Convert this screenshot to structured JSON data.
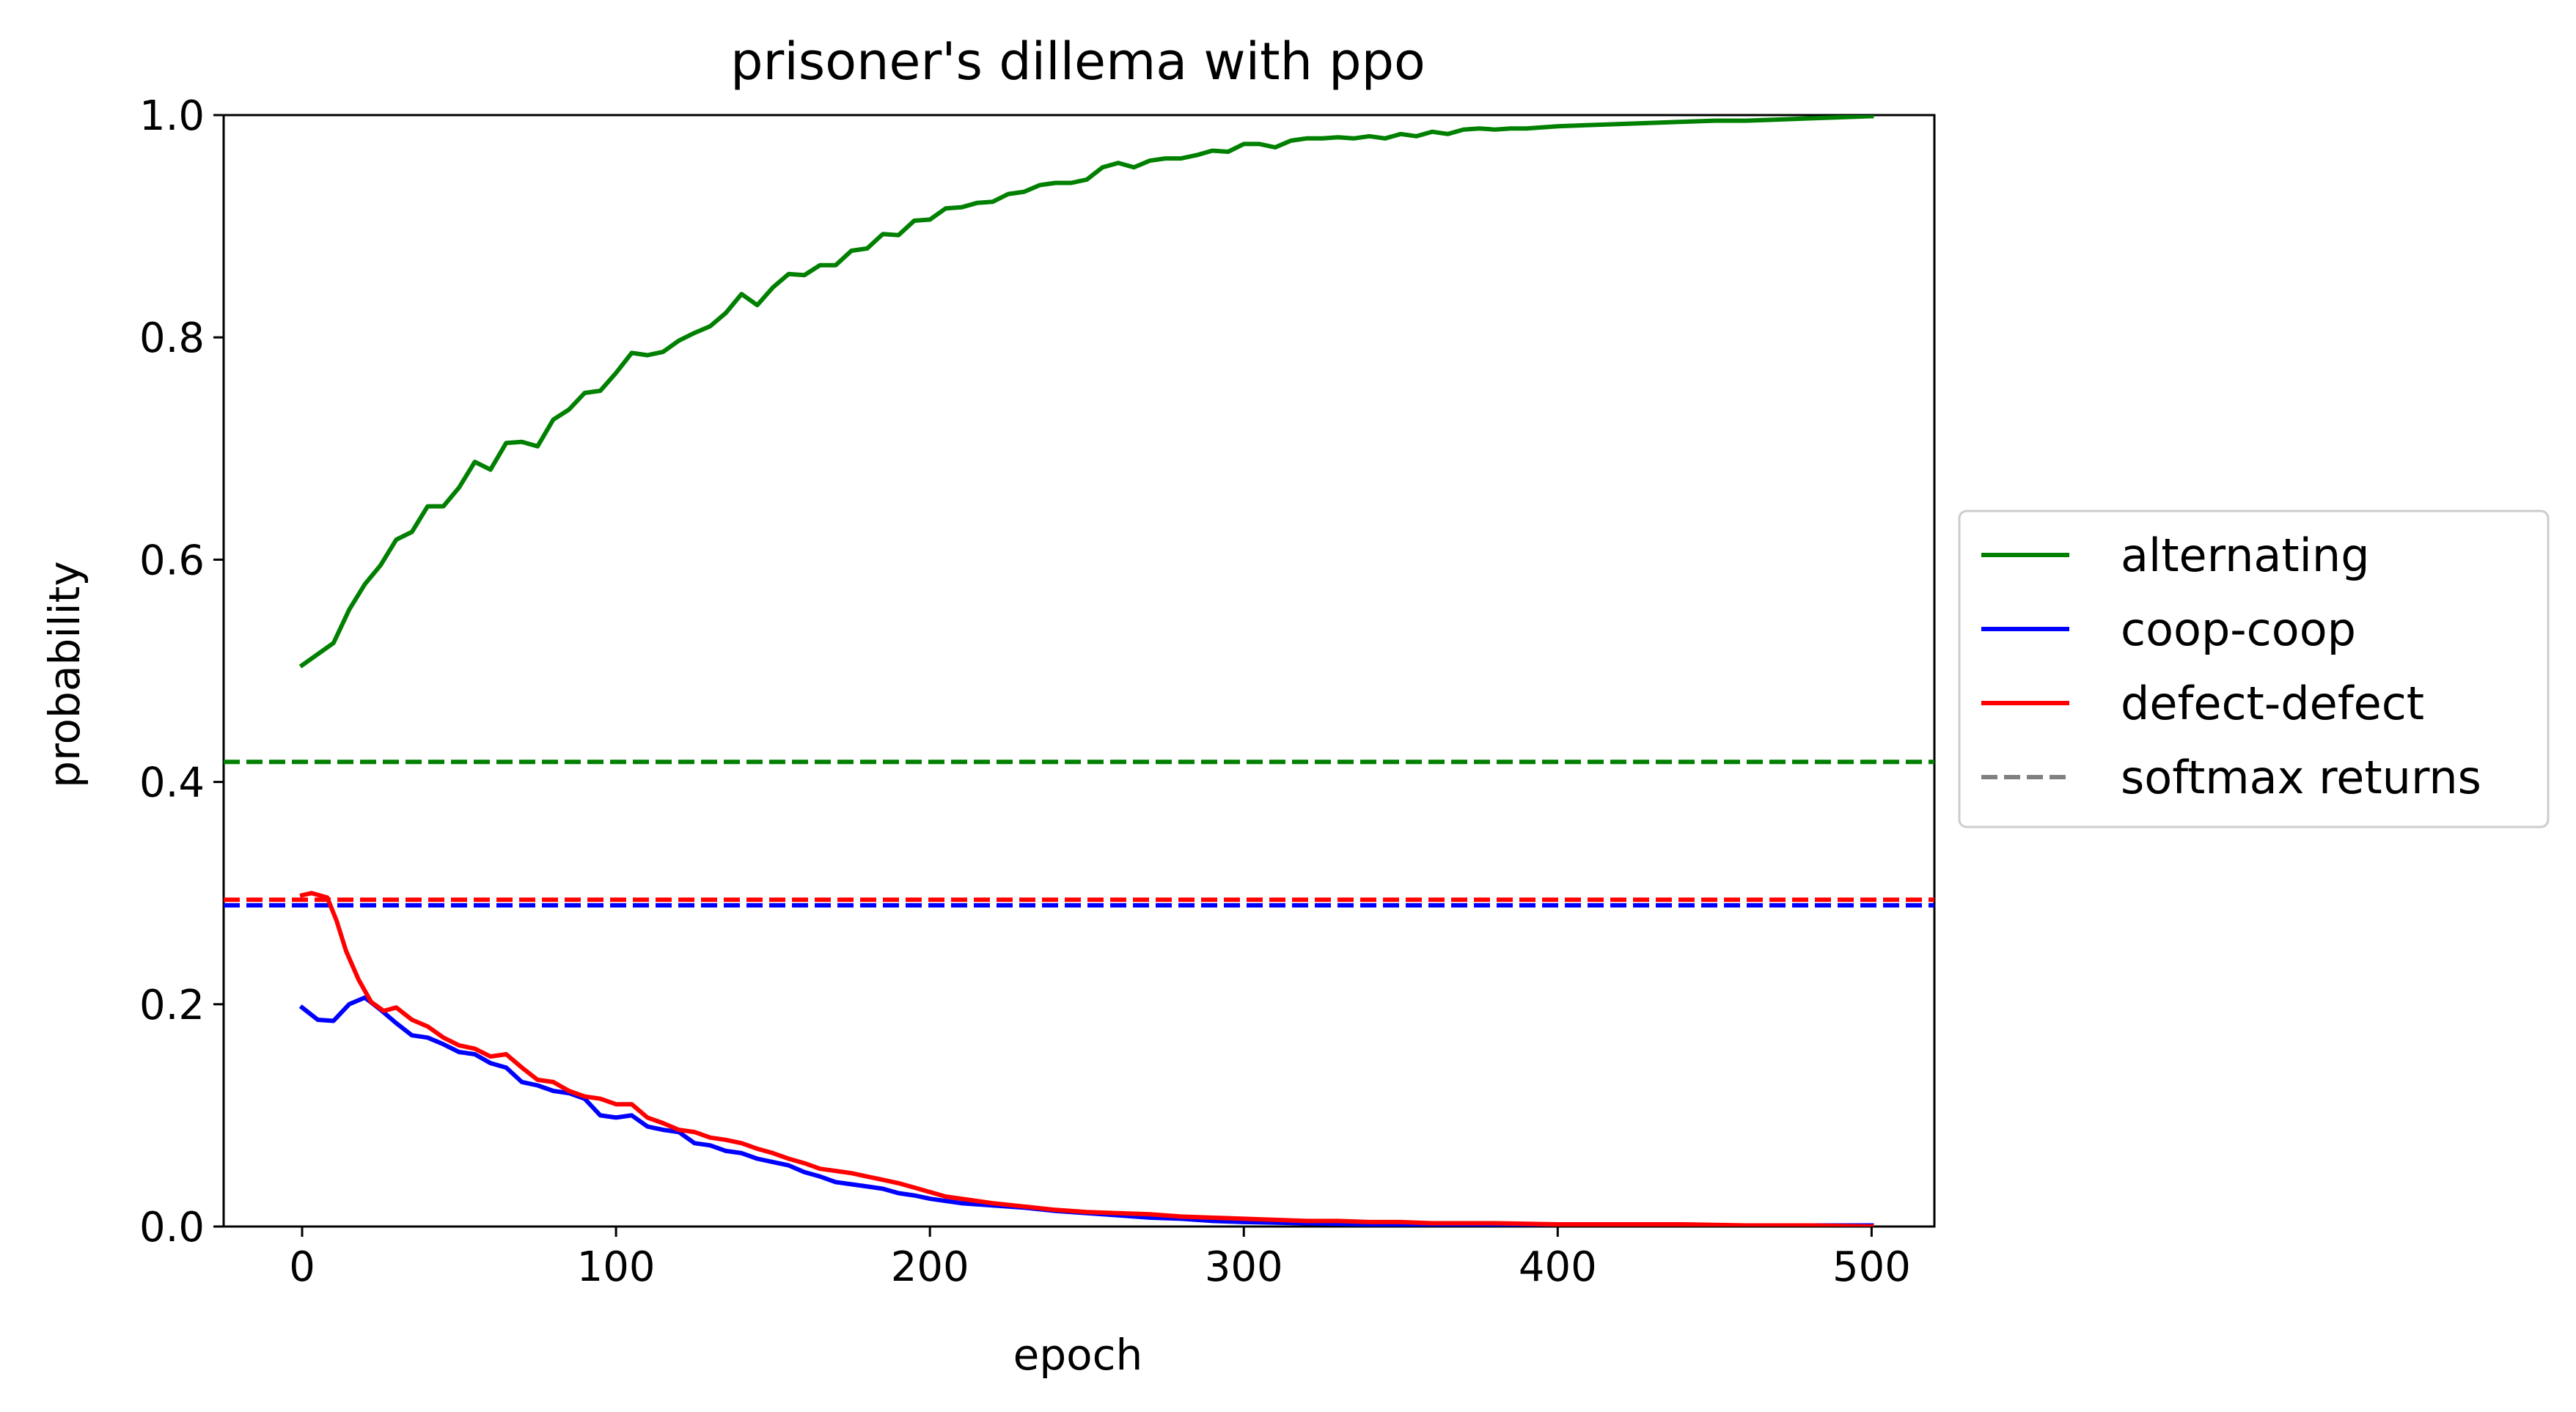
{
  "chart_data": {
    "type": "line",
    "title": "prisoner's dillema with ppo",
    "xlabel": "epoch",
    "ylabel": "probability",
    "xlim": [
      -25,
      520
    ],
    "ylim": [
      0.0,
      1.0
    ],
    "xticks": [
      0,
      100,
      200,
      300,
      400,
      500
    ],
    "yticks": [
      0.0,
      0.2,
      0.4,
      0.6,
      0.8,
      1.0
    ],
    "xtick_labels": [
      "0",
      "100",
      "200",
      "300",
      "400",
      "500"
    ],
    "ytick_labels": [
      "0.0",
      "0.2",
      "0.4",
      "0.6",
      "0.8",
      "1.0"
    ],
    "grid": false,
    "legend_position": "right, outside plot, vertically centered",
    "series": [
      {
        "name": "alternating",
        "color": "#008000",
        "style": "solid",
        "points": [
          [
            0,
            0.505
          ],
          [
            10,
            0.525
          ],
          [
            15,
            0.555
          ],
          [
            20,
            0.578
          ],
          [
            25,
            0.595
          ],
          [
            30,
            0.618
          ],
          [
            35,
            0.625
          ],
          [
            40,
            0.648
          ],
          [
            45,
            0.648
          ],
          [
            50,
            0.665
          ],
          [
            55,
            0.688
          ],
          [
            60,
            0.681
          ],
          [
            65,
            0.705
          ],
          [
            70,
            0.706
          ],
          [
            75,
            0.702
          ],
          [
            80,
            0.726
          ],
          [
            85,
            0.735
          ],
          [
            90,
            0.75
          ],
          [
            95,
            0.752
          ],
          [
            100,
            0.768
          ],
          [
            105,
            0.786
          ],
          [
            110,
            0.784
          ],
          [
            115,
            0.787
          ],
          [
            120,
            0.797
          ],
          [
            125,
            0.804
          ],
          [
            130,
            0.81
          ],
          [
            135,
            0.822
          ],
          [
            140,
            0.839
          ],
          [
            145,
            0.829
          ],
          [
            150,
            0.845
          ],
          [
            155,
            0.857
          ],
          [
            160,
            0.856
          ],
          [
            165,
            0.865
          ],
          [
            170,
            0.865
          ],
          [
            175,
            0.878
          ],
          [
            180,
            0.88
          ],
          [
            185,
            0.893
          ],
          [
            190,
            0.892
          ],
          [
            195,
            0.905
          ],
          [
            200,
            0.906
          ],
          [
            205,
            0.916
          ],
          [
            210,
            0.917
          ],
          [
            215,
            0.921
          ],
          [
            220,
            0.922
          ],
          [
            225,
            0.929
          ],
          [
            230,
            0.931
          ],
          [
            235,
            0.937
          ],
          [
            240,
            0.939
          ],
          [
            245,
            0.939
          ],
          [
            250,
            0.942
          ],
          [
            255,
            0.953
          ],
          [
            260,
            0.957
          ],
          [
            265,
            0.953
          ],
          [
            270,
            0.959
          ],
          [
            275,
            0.961
          ],
          [
            280,
            0.961
          ],
          [
            285,
            0.964
          ],
          [
            290,
            0.968
          ],
          [
            295,
            0.967
          ],
          [
            300,
            0.974
          ],
          [
            305,
            0.974
          ],
          [
            310,
            0.971
          ],
          [
            315,
            0.977
          ],
          [
            320,
            0.979
          ],
          [
            325,
            0.979
          ],
          [
            330,
            0.98
          ],
          [
            335,
            0.979
          ],
          [
            340,
            0.981
          ],
          [
            345,
            0.979
          ],
          [
            350,
            0.983
          ],
          [
            355,
            0.981
          ],
          [
            360,
            0.985
          ],
          [
            365,
            0.983
          ],
          [
            370,
            0.987
          ],
          [
            375,
            0.988
          ],
          [
            380,
            0.987
          ],
          [
            385,
            0.988
          ],
          [
            390,
            0.988
          ],
          [
            395,
            0.989
          ],
          [
            400,
            0.99
          ],
          [
            410,
            0.991
          ],
          [
            420,
            0.992
          ],
          [
            430,
            0.993
          ],
          [
            440,
            0.994
          ],
          [
            450,
            0.995
          ],
          [
            460,
            0.995
          ],
          [
            470,
            0.996
          ],
          [
            480,
            0.997
          ],
          [
            490,
            0.998
          ],
          [
            500,
            0.999
          ]
        ]
      },
      {
        "name": "coop-coop",
        "color": "#0000ff",
        "style": "solid",
        "points": [
          [
            0,
            0.197
          ],
          [
            5,
            0.186
          ],
          [
            10,
            0.185
          ],
          [
            15,
            0.2
          ],
          [
            20,
            0.206
          ],
          [
            25,
            0.195
          ],
          [
            30,
            0.183
          ],
          [
            35,
            0.172
          ],
          [
            40,
            0.17
          ],
          [
            45,
            0.164
          ],
          [
            50,
            0.157
          ],
          [
            55,
            0.155
          ],
          [
            60,
            0.147
          ],
          [
            65,
            0.143
          ],
          [
            70,
            0.13
          ],
          [
            75,
            0.127
          ],
          [
            80,
            0.122
          ],
          [
            85,
            0.12
          ],
          [
            90,
            0.115
          ],
          [
            95,
            0.1
          ],
          [
            100,
            0.098
          ],
          [
            105,
            0.1
          ],
          [
            110,
            0.09
          ],
          [
            115,
            0.087
          ],
          [
            120,
            0.085
          ],
          [
            125,
            0.075
          ],
          [
            130,
            0.073
          ],
          [
            135,
            0.068
          ],
          [
            140,
            0.066
          ],
          [
            145,
            0.061
          ],
          [
            150,
            0.058
          ],
          [
            155,
            0.055
          ],
          [
            160,
            0.049
          ],
          [
            165,
            0.045
          ],
          [
            170,
            0.04
          ],
          [
            175,
            0.038
          ],
          [
            180,
            0.036
          ],
          [
            185,
            0.034
          ],
          [
            190,
            0.03
          ],
          [
            195,
            0.028
          ],
          [
            200,
            0.025
          ],
          [
            210,
            0.021
          ],
          [
            220,
            0.019
          ],
          [
            230,
            0.017
          ],
          [
            240,
            0.014
          ],
          [
            250,
            0.012
          ],
          [
            260,
            0.01
          ],
          [
            270,
            0.008
          ],
          [
            280,
            0.007
          ],
          [
            290,
            0.005
          ],
          [
            300,
            0.004
          ],
          [
            320,
            0.003
          ],
          [
            340,
            0.002
          ],
          [
            360,
            0.002
          ],
          [
            380,
            0.002
          ],
          [
            400,
            0.001
          ],
          [
            420,
            0.001
          ],
          [
            450,
            0.001
          ],
          [
            480,
            0.001
          ],
          [
            500,
            0.001
          ]
        ]
      },
      {
        "name": "defect-defect",
        "color": "#ff0000",
        "style": "solid",
        "points": [
          [
            0,
            0.298
          ],
          [
            3,
            0.3
          ],
          [
            8,
            0.296
          ],
          [
            11,
            0.275
          ],
          [
            14,
            0.248
          ],
          [
            18,
            0.222
          ],
          [
            22,
            0.202
          ],
          [
            26,
            0.194
          ],
          [
            30,
            0.197
          ],
          [
            35,
            0.186
          ],
          [
            40,
            0.18
          ],
          [
            45,
            0.17
          ],
          [
            50,
            0.163
          ],
          [
            55,
            0.16
          ],
          [
            60,
            0.153
          ],
          [
            65,
            0.155
          ],
          [
            70,
            0.143
          ],
          [
            75,
            0.132
          ],
          [
            80,
            0.13
          ],
          [
            85,
            0.122
          ],
          [
            90,
            0.117
          ],
          [
            95,
            0.115
          ],
          [
            100,
            0.11
          ],
          [
            105,
            0.11
          ],
          [
            110,
            0.098
          ],
          [
            115,
            0.093
          ],
          [
            120,
            0.087
          ],
          [
            125,
            0.085
          ],
          [
            130,
            0.08
          ],
          [
            135,
            0.078
          ],
          [
            140,
            0.075
          ],
          [
            145,
            0.07
          ],
          [
            150,
            0.066
          ],
          [
            155,
            0.061
          ],
          [
            160,
            0.057
          ],
          [
            165,
            0.052
          ],
          [
            170,
            0.05
          ],
          [
            175,
            0.048
          ],
          [
            180,
            0.045
          ],
          [
            185,
            0.042
          ],
          [
            190,
            0.039
          ],
          [
            195,
            0.035
          ],
          [
            200,
            0.031
          ],
          [
            205,
            0.027
          ],
          [
            210,
            0.025
          ],
          [
            220,
            0.021
          ],
          [
            230,
            0.018
          ],
          [
            240,
            0.015
          ],
          [
            250,
            0.013
          ],
          [
            260,
            0.012
          ],
          [
            270,
            0.011
          ],
          [
            280,
            0.009
          ],
          [
            290,
            0.008
          ],
          [
            300,
            0.007
          ],
          [
            310,
            0.006
          ],
          [
            320,
            0.005
          ],
          [
            330,
            0.005
          ],
          [
            340,
            0.004
          ],
          [
            350,
            0.004
          ],
          [
            360,
            0.003
          ],
          [
            380,
            0.003
          ],
          [
            400,
            0.002
          ],
          [
            420,
            0.002
          ],
          [
            440,
            0.002
          ],
          [
            460,
            0.001
          ],
          [
            480,
            0.001
          ],
          [
            500,
            0.0
          ]
        ]
      }
    ],
    "reference_lines": [
      {
        "label": "softmax returns",
        "value": 0.418,
        "color": "#008000",
        "style": "dashed"
      },
      {
        "label": "softmax returns",
        "value": 0.294,
        "color": "#ff0000",
        "style": "dashed"
      },
      {
        "label": "softmax returns",
        "value": 0.289,
        "color": "#0000ff",
        "style": "dashed"
      }
    ],
    "legend": [
      {
        "label": "alternating",
        "color": "#008000",
        "style": "solid"
      },
      {
        "label": "coop-coop",
        "color": "#0000ff",
        "style": "solid"
      },
      {
        "label": "defect-defect",
        "color": "#ff0000",
        "style": "solid"
      },
      {
        "label": "softmax returns",
        "color": "#808080",
        "style": "dashed"
      }
    ]
  }
}
